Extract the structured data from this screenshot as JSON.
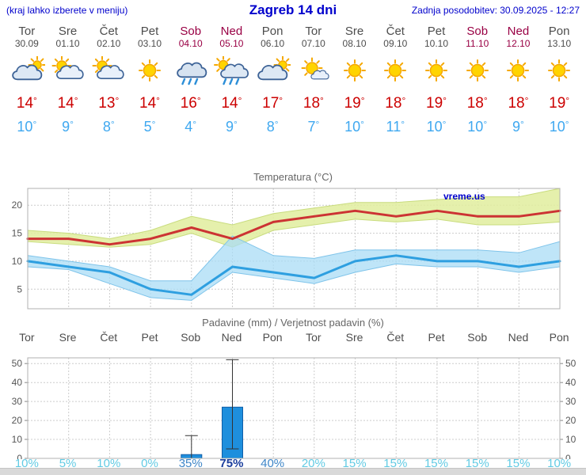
{
  "header": {
    "left_note": "(kraj lahko izberete v meniju)",
    "title": "Zagreb 14 dni",
    "updated": "Zadnja posodobitev: 30.09.2025 - 12:27"
  },
  "misc": {
    "degree": "°"
  },
  "colors": {
    "header_blue": "#0000cc",
    "weekday_gray": "#4d4d4d",
    "weekend_red": "#990044",
    "tmax_red": "#cc0000",
    "tmin_blue": "#3fa8f0",
    "line_max": "#cc3333",
    "line_min": "#2e9fe0",
    "band_max": "#e0ed9e",
    "band_max_edge": "#c9dc7e",
    "band_min": "#aadcf5",
    "band_min_edge": "#7fc4ea",
    "bar_fill": "#1e8fdd",
    "bar_edge": "#0f5ea8",
    "whisker": "#333333",
    "pop_light": "#62cbe4",
    "pop_mid": "#3e86c8",
    "pop_dark": "#1c3f9e"
  },
  "days": [
    {
      "name": "Tor",
      "date": "30.09",
      "weekend": false,
      "icon": "cloudy",
      "tmax": "14",
      "tmin": "10",
      "pop": "10%"
    },
    {
      "name": "Sre",
      "date": "01.10",
      "weekend": false,
      "icon": "partly",
      "tmax": "14",
      "tmin": "9",
      "pop": "5%"
    },
    {
      "name": "Čet",
      "date": "02.10",
      "weekend": false,
      "icon": "partly",
      "tmax": "13",
      "tmin": "8",
      "pop": "10%"
    },
    {
      "name": "Pet",
      "date": "03.10",
      "weekend": false,
      "icon": "sunny",
      "tmax": "14",
      "tmin": "5",
      "pop": "0%"
    },
    {
      "name": "Sob",
      "date": "04.10",
      "weekend": true,
      "icon": "rain",
      "tmax": "16",
      "tmin": "4",
      "pop": "35%"
    },
    {
      "name": "Ned",
      "date": "05.10",
      "weekend": true,
      "icon": "rainsun",
      "tmax": "14",
      "tmin": "9",
      "pop": "75%"
    },
    {
      "name": "Pon",
      "date": "06.10",
      "weekend": false,
      "icon": "cloudy",
      "tmax": "17",
      "tmin": "8",
      "pop": "40%"
    },
    {
      "name": "Tor",
      "date": "07.10",
      "weekend": false,
      "icon": "mostlysunny",
      "tmax": "18",
      "tmin": "7",
      "pop": "20%"
    },
    {
      "name": "Sre",
      "date": "08.10",
      "weekend": false,
      "icon": "sunny",
      "tmax": "19",
      "tmin": "10",
      "pop": "15%"
    },
    {
      "name": "Čet",
      "date": "09.10",
      "weekend": false,
      "icon": "sunny",
      "tmax": "18",
      "tmin": "11",
      "pop": "15%"
    },
    {
      "name": "Pet",
      "date": "10.10",
      "weekend": false,
      "icon": "sunny",
      "tmax": "19",
      "tmin": "10",
      "pop": "15%"
    },
    {
      "name": "Sob",
      "date": "11.10",
      "weekend": true,
      "icon": "sunny",
      "tmax": "18",
      "tmin": "10",
      "pop": "15%"
    },
    {
      "name": "Ned",
      "date": "12.10",
      "weekend": true,
      "icon": "sunny",
      "tmax": "18",
      "tmin": "9",
      "pop": "15%"
    },
    {
      "name": "Pon",
      "date": "13.10",
      "weekend": false,
      "icon": "sunny",
      "tmax": "19",
      "tmin": "10",
      "pop": "10%"
    }
  ],
  "chart_data": [
    {
      "type": "line",
      "title": "Temperatura (°C)",
      "watermark": "vreme.us",
      "categories": [
        "Tor 30.09",
        "Sre 01.10",
        "Čet 02.10",
        "Pet 03.10",
        "Sob 04.10",
        "Ned 05.10",
        "Pon 06.10",
        "Tor 07.10",
        "Sre 08.10",
        "Čet 09.10",
        "Pet 10.10",
        "Sob 11.10",
        "Ned 12.10",
        "Pon 13.10"
      ],
      "yticks": [
        5,
        10,
        15,
        20
      ],
      "ylim": [
        1.5,
        23
      ],
      "grid": true,
      "legend_position": "none",
      "series": [
        {
          "name": "max_temp",
          "values": [
            14,
            14,
            13,
            14,
            16,
            14,
            17,
            18,
            19,
            18,
            19,
            18,
            18,
            19
          ]
        },
        {
          "name": "max_band_hi",
          "values": [
            15.5,
            15,
            14,
            15.5,
            18,
            16.5,
            18.5,
            19.5,
            20.5,
            20.5,
            21,
            21.5,
            21.5,
            23
          ]
        },
        {
          "name": "max_band_lo",
          "values": [
            13.5,
            13,
            12.5,
            13,
            15,
            12.5,
            15.5,
            16.5,
            17.5,
            17,
            17.5,
            16.5,
            16.5,
            17
          ]
        },
        {
          "name": "min_temp",
          "values": [
            10,
            9,
            8,
            5,
            4,
            9,
            8,
            7,
            10,
            11,
            10,
            10,
            9,
            10
          ]
        },
        {
          "name": "min_band_hi",
          "values": [
            11,
            10,
            9,
            6.5,
            6.5,
            14.5,
            11,
            10.5,
            12,
            12,
            12,
            12,
            11.5,
            13.5
          ]
        },
        {
          "name": "min_band_lo",
          "values": [
            9,
            8.5,
            6,
            3.5,
            3,
            8,
            7,
            6,
            8,
            9.5,
            9,
            9,
            8,
            9
          ]
        }
      ]
    },
    {
      "type": "bar",
      "title": "Padavine (mm) / Verjetnost padavin (%)",
      "categories": [
        "Tor",
        "Sre",
        "Čet",
        "Pet",
        "Sob",
        "Ned",
        "Pon",
        "Tor",
        "Sre",
        "Čet",
        "Pet",
        "Sob",
        "Ned",
        "Pon"
      ],
      "yticks": [
        0,
        10,
        20,
        30,
        40,
        50
      ],
      "ylim": [
        0,
        53
      ],
      "grid": true,
      "values_mm": [
        0,
        0,
        0,
        0,
        2,
        27,
        0,
        0,
        0,
        0,
        0,
        0,
        0,
        0
      ],
      "whisker_hi": [
        0,
        0,
        0,
        0,
        12,
        52,
        0,
        0,
        0,
        0,
        0,
        0,
        0,
        0
      ],
      "whisker_lo": [
        0,
        0,
        0,
        0,
        0,
        5,
        0,
        0,
        0,
        0,
        0,
        0,
        0,
        0
      ],
      "probability_pct": [
        10,
        5,
        10,
        0,
        35,
        75,
        40,
        20,
        15,
        15,
        15,
        15,
        15,
        10
      ]
    }
  ]
}
